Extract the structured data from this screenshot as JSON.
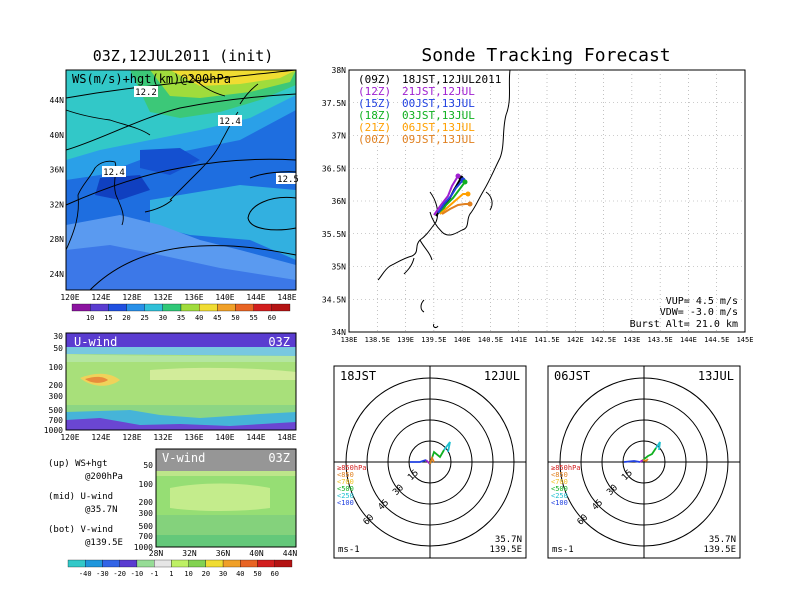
{
  "left_title": "03Z,12JUL2011 (init)",
  "right_title": "Sonde Tracking Forecast",
  "map_panel": {
    "label": "WS(m/s)+hgt(km)@200hPa",
    "contour_labels": [
      "12.2",
      "12.4",
      "12.4",
      "12.5"
    ],
    "lat_ticks": [
      "44N",
      "40N",
      "36N",
      "32N",
      "28N",
      "24N"
    ],
    "lon_ticks": [
      "120E",
      "124E",
      "128E",
      "132E",
      "136E",
      "140E",
      "144E",
      "148E"
    ],
    "colorbar_ticks": [
      "10",
      "15",
      "20",
      "25",
      "30",
      "35",
      "40",
      "45",
      "50",
      "55",
      "60"
    ]
  },
  "u_panel": {
    "label": "U-wind",
    "time": "03Z",
    "p_ticks": [
      "30",
      "50",
      "100",
      "200",
      "300",
      "500",
      "700",
      "1000"
    ],
    "lon_ticks": [
      "120E",
      "124E",
      "128E",
      "132E",
      "136E",
      "140E",
      "144E",
      "148E"
    ]
  },
  "v_panel": {
    "label": "V-wind",
    "time": "03Z",
    "p_ticks": [
      "50",
      "100",
      "200",
      "300",
      "500",
      "700",
      "1000"
    ],
    "lat_ticks": [
      "28N",
      "32N",
      "36N",
      "40N",
      "44N"
    ]
  },
  "legend_text": {
    "up": "(up) WS+hgt",
    "up2": "@200hPa",
    "mid": "(mid) U-wind",
    "mid2": "@35.7N",
    "bot": "(bot) V-wind",
    "bot2": "@139.5E"
  },
  "bottom_colorbar_ticks": [
    "-40",
    "-30",
    "-20",
    "-10",
    "-1",
    "1",
    "10",
    "20",
    "30",
    "40",
    "50",
    "60"
  ],
  "track_map": {
    "lat_ticks": [
      "38N",
      "37.5N",
      "37N",
      "36.5N",
      "36N",
      "35.5N",
      "35N",
      "34.5N",
      "34N"
    ],
    "lon_ticks": [
      "138E",
      "138.5E",
      "139E",
      "139.5E",
      "140E",
      "140.5E",
      "141E",
      "141.5E",
      "142E",
      "142.5E",
      "143E",
      "143.5E",
      "144E",
      "144.5E",
      "145E"
    ],
    "launches": [
      {
        "code": "(09Z)",
        "label": "18JST,12JUL2011",
        "color": "#000000"
      },
      {
        "code": "(12Z)",
        "label": "21JST,12JUL",
        "color": "#a020d0"
      },
      {
        "code": "(15Z)",
        "label": "00JST,13JUL",
        "color": "#2040e0"
      },
      {
        "code": "(18Z)",
        "label": "03JST,13JUL",
        "color": "#10b020"
      },
      {
        "code": "(21Z)",
        "label": "06JST,13JUL",
        "color": "#ffa000"
      },
      {
        "code": "(00Z)",
        "label": "09JST,13JUL",
        "color": "#e08020"
      }
    ],
    "vup": "VUP= 4.5 m/s",
    "vdw": "VDW= -3.0 m/s",
    "burst": "Burst Alt= 21.0 km"
  },
  "hodo1": {
    "time": "18JST",
    "date": "12JUL",
    "rings": [
      "15",
      "30",
      "45",
      "60"
    ],
    "levels": [
      "≥850hPa",
      "<850",
      "<700",
      "<500",
      "<250",
      "<100"
    ],
    "unit": "ms-1",
    "lat": "35.7N",
    "lon": "139.5E"
  },
  "hodo2": {
    "time": "06JST",
    "date": "13JUL",
    "rings": [
      "15",
      "30",
      "45",
      "60"
    ],
    "levels": [
      "≥850hPa",
      "<850",
      "<700",
      "<500",
      "<250",
      "<100"
    ],
    "unit": "ms-1",
    "lat": "35.7N",
    "lon": "139.5E"
  }
}
